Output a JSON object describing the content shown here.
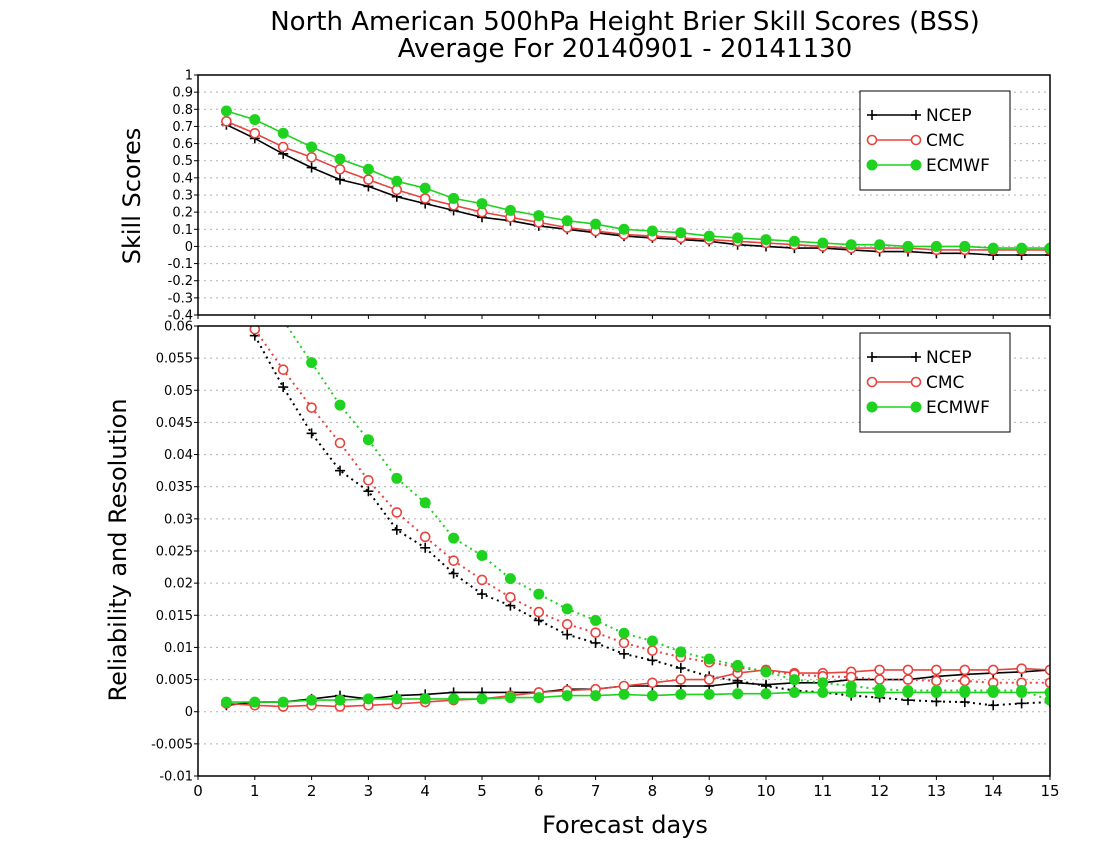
{
  "title_line1": "North American 500hPa Height Brier Skill Scores (BSS)",
  "title_line2": "Average For 20140901 - 20141130",
  "colors": {
    "NCEP": "#000000",
    "CMC": "#e8433f",
    "ECMWF": "#1fd21f",
    "grid": "#b0b0b0"
  },
  "chart_data": [
    {
      "type": "line",
      "panel": "top",
      "ylabel": "Skill Scores",
      "xlabel": "",
      "xlim": [
        0,
        15
      ],
      "ylim": [
        -0.4,
        1
      ],
      "xticks": [
        0,
        1,
        2,
        3,
        4,
        5,
        6,
        7,
        8,
        9,
        10,
        11,
        12,
        13,
        14,
        15
      ],
      "yticks": [
        "-0.4",
        "-0.3",
        "-0.2",
        "-0.1",
        "0",
        "0.1",
        "0.2",
        "0.3",
        "0.4",
        "0.5",
        "0.6",
        "0.7",
        "0.8",
        "0.9",
        "1"
      ],
      "grid": "horizontal dotted",
      "legend": "top-right",
      "x": [
        0.5,
        1,
        1.5,
        2,
        2.5,
        3,
        3.5,
        4,
        4.5,
        5,
        5.5,
        6,
        6.5,
        7,
        7.5,
        8,
        8.5,
        9,
        9.5,
        10,
        10.5,
        11,
        11.5,
        12,
        12.5,
        13,
        13.5,
        14,
        14.5,
        15
      ],
      "series": [
        {
          "name": "NCEP",
          "marker": "plus",
          "line": "solid",
          "values": [
            0.71,
            0.63,
            0.54,
            0.46,
            0.39,
            0.35,
            0.29,
            0.25,
            0.21,
            0.17,
            0.15,
            0.12,
            0.1,
            0.08,
            0.06,
            0.05,
            0.04,
            0.03,
            0.01,
            0,
            -0.01,
            -0.01,
            -0.02,
            -0.03,
            -0.03,
            -0.04,
            -0.04,
            -0.05,
            -0.05,
            -0.05
          ]
        },
        {
          "name": "CMC",
          "marker": "open-circle",
          "line": "solid",
          "values": [
            0.73,
            0.66,
            0.58,
            0.52,
            0.45,
            0.39,
            0.33,
            0.28,
            0.24,
            0.2,
            0.17,
            0.14,
            0.11,
            0.09,
            0.07,
            0.06,
            0.05,
            0.04,
            0.03,
            0.02,
            0.01,
            0,
            -0.01,
            -0.01,
            -0.01,
            -0.02,
            -0.02,
            -0.02,
            -0.02,
            -0.02
          ]
        },
        {
          "name": "ECMWF",
          "marker": "filled-circle",
          "line": "solid",
          "values": [
            0.79,
            0.74,
            0.66,
            0.58,
            0.51,
            0.45,
            0.38,
            0.34,
            0.28,
            0.25,
            0.21,
            0.18,
            0.15,
            0.13,
            0.1,
            0.09,
            0.08,
            0.06,
            0.05,
            0.04,
            0.03,
            0.02,
            0.01,
            0.01,
            0,
            0,
            0,
            -0.01,
            -0.01,
            -0.01
          ]
        }
      ]
    },
    {
      "type": "line",
      "panel": "bottom",
      "ylabel": "Reliability and Resolution",
      "xlabel": "Forecast days",
      "xlim": [
        0,
        15
      ],
      "ylim": [
        -0.01,
        0.06
      ],
      "xticks": [
        0,
        1,
        2,
        3,
        4,
        5,
        6,
        7,
        8,
        9,
        10,
        11,
        12,
        13,
        14,
        15
      ],
      "yticks": [
        "-0.01",
        "-0.005",
        "0",
        "0.005",
        "0.01",
        "0.015",
        "0.02",
        "0.025",
        "0.03",
        "0.035",
        "0.04",
        "0.045",
        "0.05",
        "0.055",
        "0.06"
      ],
      "grid": "horizontal dotted",
      "legend": "top-right",
      "x": [
        0.5,
        1,
        1.5,
        2,
        2.5,
        3,
        3.5,
        4,
        4.5,
        5,
        5.5,
        6,
        6.5,
        7,
        7.5,
        8,
        8.5,
        9,
        9.5,
        10,
        10.5,
        11,
        11.5,
        12,
        12.5,
        13,
        13.5,
        14,
        14.5,
        15
      ],
      "series": [
        {
          "name": "NCEP",
          "component": "reliability",
          "marker": "plus",
          "line": "solid",
          "values": [
            0.001,
            0.0015,
            0.0015,
            0.002,
            0.0025,
            0.002,
            0.0025,
            0.0027,
            0.003,
            0.003,
            0.003,
            0.003,
            0.0035,
            0.0035,
            0.004,
            0.004,
            0.004,
            0.004,
            0.0045,
            0.0042,
            0.0045,
            0.0045,
            0.005,
            0.005,
            0.005,
            0.0055,
            0.0058,
            0.006,
            0.0062,
            0.0065
          ]
        },
        {
          "name": "NCEP",
          "component": "resolution",
          "marker": "plus",
          "line": "dotted",
          "values": [
            null,
            0.0585,
            0.0505,
            0.0433,
            0.0375,
            0.0343,
            0.0283,
            0.0255,
            0.0215,
            0.0183,
            0.0165,
            0.0142,
            0.012,
            0.0107,
            0.009,
            0.008,
            0.0068,
            0.0055,
            0.0048,
            0.004,
            0.0033,
            0.003,
            0.0025,
            0.0022,
            0.0018,
            0.0016,
            0.0015,
            0.001,
            0.0013,
            0.0015
          ]
        },
        {
          "name": "CMC",
          "component": "reliability",
          "marker": "open-circle",
          "line": "solid",
          "values": [
            0.0013,
            0.001,
            0.0008,
            0.001,
            0.0008,
            0.001,
            0.0012,
            0.0015,
            0.0018,
            0.002,
            0.0025,
            0.003,
            0.0033,
            0.0035,
            0.004,
            0.0045,
            0.005,
            0.005,
            0.006,
            0.0065,
            0.006,
            0.006,
            0.0062,
            0.0065,
            0.0065,
            0.0065,
            0.0065,
            0.0065,
            0.0067,
            0.0065
          ]
        },
        {
          "name": "CMC",
          "component": "resolution",
          "marker": "open-circle",
          "line": "dotted",
          "values": [
            null,
            0.0595,
            0.0532,
            0.0473,
            0.0418,
            0.036,
            0.031,
            0.0272,
            0.0235,
            0.0205,
            0.0178,
            0.0155,
            0.0136,
            0.0123,
            0.0107,
            0.0095,
            0.0085,
            0.0077,
            0.0069,
            0.0063,
            0.0058,
            0.0055,
            0.0054,
            0.005,
            0.005,
            0.0048,
            0.0048,
            0.0045,
            0.0045,
            0.0045
          ]
        },
        {
          "name": "ECMWF",
          "component": "reliability",
          "marker": "filled-circle",
          "line": "solid",
          "values": [
            0.0015,
            0.0015,
            0.0015,
            0.0018,
            0.0018,
            0.002,
            0.002,
            0.002,
            0.002,
            0.002,
            0.0022,
            0.0022,
            0.0025,
            0.0025,
            0.0027,
            0.0025,
            0.0027,
            0.0027,
            0.0028,
            0.0028,
            0.003,
            0.003,
            0.003,
            0.003,
            0.003,
            0.003,
            0.003,
            0.003,
            0.003,
            0.003
          ]
        },
        {
          "name": "ECMWF",
          "component": "resolution",
          "marker": "filled-circle",
          "line": "dotted",
          "values": [
            null,
            null,
            null,
            0.0543,
            0.0477,
            0.0423,
            0.0363,
            0.0325,
            0.027,
            0.0243,
            0.0207,
            0.0183,
            0.016,
            0.0142,
            0.0122,
            0.011,
            0.0093,
            0.0082,
            0.0072,
            0.0062,
            0.005,
            0.0045,
            0.004,
            0.0035,
            0.0033,
            0.0033,
            0.0033,
            0.0033,
            0.0033,
            0.0018
          ]
        }
      ]
    }
  ]
}
